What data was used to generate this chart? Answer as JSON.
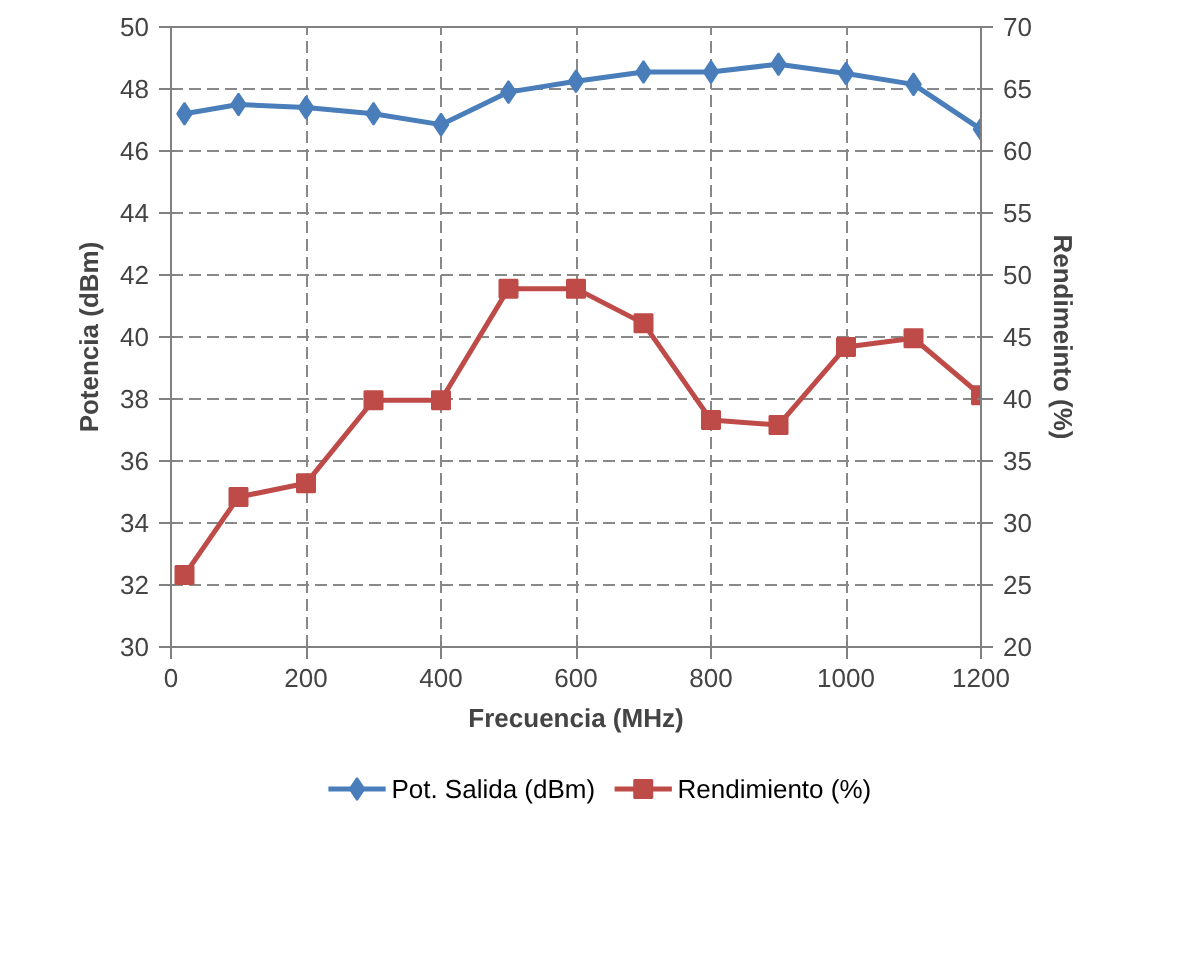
{
  "chart_data": {
    "type": "line",
    "xlabel": "Frecuencia (MHz)",
    "ylabel": "Potencia (dBm)",
    "y2label": "Rendimeinto (%)",
    "x": [
      20,
      100,
      200,
      300,
      400,
      500,
      600,
      700,
      800,
      900,
      1000,
      1100,
      1200
    ],
    "series": [
      {
        "name": "Pot. Salida (dBm)",
        "color": "#4a7ebb",
        "marker": "diamond",
        "values": [
          47.2,
          47.5,
          47.4,
          47.2,
          46.85,
          47.9,
          48.25,
          48.55,
          48.55,
          48.8,
          48.5,
          48.15,
          46.7
        ]
      },
      {
        "name": "Rendimiento (%)",
        "color": "#be4b48",
        "marker": "square",
        "axis": "y2",
        "values": [
          25.8,
          32.1,
          33.2,
          39.9,
          39.9,
          48.9,
          48.9,
          46.1,
          38.3,
          37.9,
          44.2,
          44.9,
          40.3
        ]
      }
    ],
    "xlim": [
      0,
      1200
    ],
    "xticks": [
      0,
      200,
      400,
      600,
      800,
      1000,
      1200
    ],
    "ylim": [
      30,
      50
    ],
    "yticks": [
      30,
      32,
      34,
      36,
      38,
      40,
      42,
      44,
      46,
      48,
      50
    ],
    "y2lim": [
      20,
      70
    ],
    "y2ticks": [
      20,
      25,
      30,
      35,
      40,
      45,
      50,
      55,
      60,
      65,
      70
    ],
    "grid": true,
    "legend": "bottom",
    "line_style": "solid"
  }
}
